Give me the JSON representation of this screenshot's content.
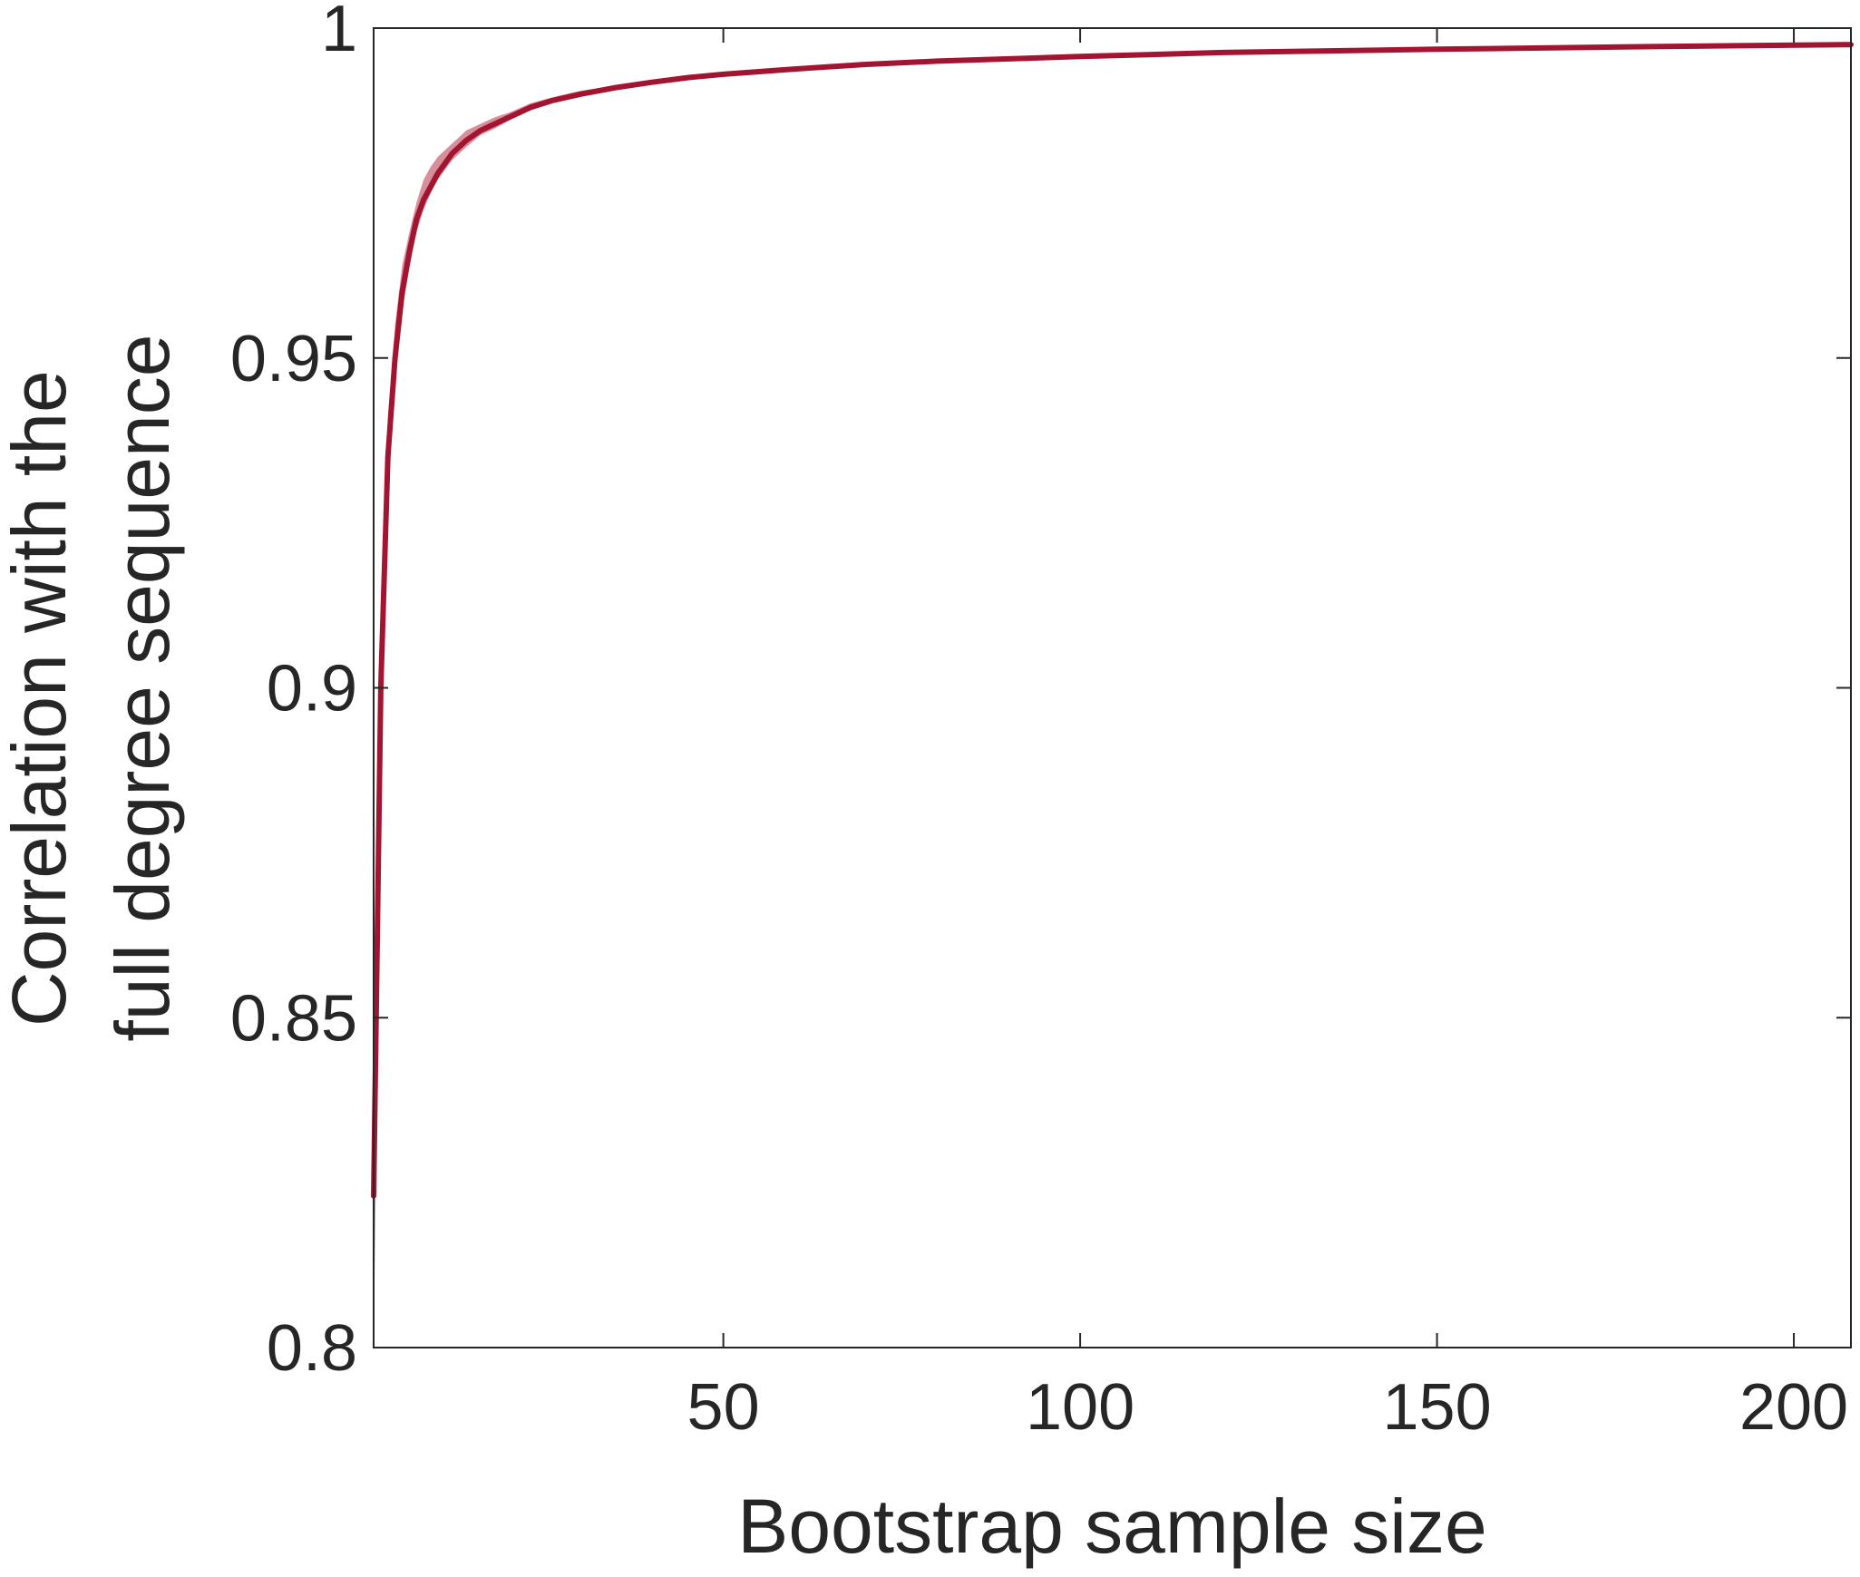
{
  "chart_data": {
    "type": "line",
    "title": "",
    "xlabel": "Bootstrap sample size",
    "ylabel_lines": [
      "Correlation with the",
      "full degree sequence"
    ],
    "xlim": [
      1,
      208
    ],
    "ylim": [
      0.8,
      1
    ],
    "xticks": [
      50,
      100,
      150,
      200
    ],
    "xtick_labels": [
      "50",
      "100",
      "150",
      "200"
    ],
    "yticks": [
      0.8,
      0.85,
      0.9,
      0.95,
      1
    ],
    "ytick_labels": [
      "0.8",
      "0.85",
      "0.9",
      "0.95",
      "1"
    ],
    "grid": false,
    "line_color": "#A2142F",
    "band_color": "#C86A7A",
    "series": [
      {
        "x": [
          1,
          2,
          3,
          4,
          5,
          6,
          7,
          8,
          9,
          10,
          12,
          14,
          16,
          18,
          20,
          23,
          26,
          30,
          35,
          40,
          45,
          50,
          60,
          70,
          80,
          100,
          120,
          150,
          180,
          208
        ],
        "values": [
          0.823,
          0.9,
          0.935,
          0.95,
          0.96,
          0.966,
          0.971,
          0.974,
          0.976,
          0.978,
          0.981,
          0.983,
          0.9845,
          0.9855,
          0.9865,
          0.988,
          0.989,
          0.99,
          0.991,
          0.9918,
          0.9925,
          0.993,
          0.9938,
          0.9945,
          0.995,
          0.9957,
          0.9963,
          0.9968,
          0.9972,
          0.9975
        ],
        "lower": [
          0.8,
          0.885,
          0.929,
          0.946,
          0.957,
          0.9635,
          0.969,
          0.9725,
          0.975,
          0.977,
          0.98,
          0.982,
          0.9838,
          0.9848,
          0.986,
          0.9875,
          0.9886,
          0.9896,
          0.9907,
          0.9915,
          0.9922,
          0.9928,
          0.9936,
          0.9943,
          0.9948,
          0.9956,
          0.9962,
          0.9967,
          0.9971,
          0.9974
        ],
        "upper": [
          0.85,
          0.912,
          0.941,
          0.955,
          0.964,
          0.969,
          0.9735,
          0.977,
          0.979,
          0.9805,
          0.9825,
          0.9845,
          0.9855,
          0.9865,
          0.9872,
          0.9886,
          0.9895,
          0.9905,
          0.9913,
          0.9921,
          0.9928,
          0.9932,
          0.994,
          0.9947,
          0.9952,
          0.9958,
          0.9964,
          0.9969,
          0.9973,
          0.9976
        ]
      }
    ]
  }
}
